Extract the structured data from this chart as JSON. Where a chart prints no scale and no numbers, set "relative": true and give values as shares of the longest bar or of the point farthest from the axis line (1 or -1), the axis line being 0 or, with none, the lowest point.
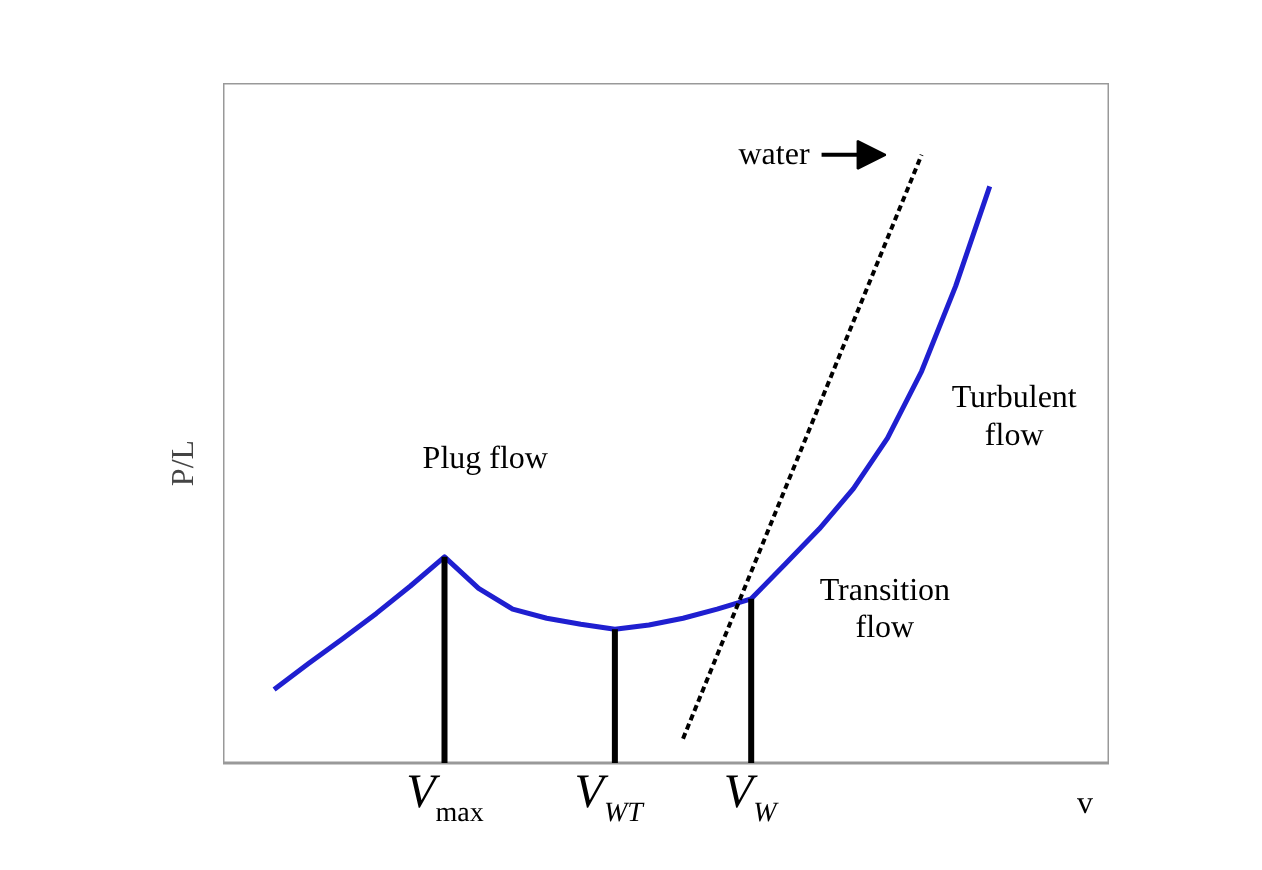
{
  "chart_data": {
    "type": "line",
    "relative": true,
    "ylabel": "P/L",
    "xlabel": "v",
    "categories": [
      null,
      null,
      null,
      null,
      null,
      null,
      "V$_{max}$",
      null,
      null,
      null,
      null,
      "V$_{WT}$",
      null,
      null,
      null,
      "V$_{W}$",
      null,
      null,
      null,
      null,
      null,
      null,
      null,
      null,
      null,
      null
    ],
    "grid": false,
    "tick_labels": "x",
    "series": [
      {
        "color": "#1f1fd0",
        "values": [
          null,
          0.121,
          0.163,
          0.204,
          0.246,
          0.291,
          0.339,
          0.287,
          0.253,
          0.238,
          0.228,
          0.22,
          0.227,
          0.238,
          0.253,
          0.27,
          0.327,
          0.385,
          0.451,
          0.534,
          0.644,
          0.784,
          0.948,
          null,
          null,
          null
        ]
      },
      {
        "type": "line",
        "name": "water",
        "color": "#000000",
        "line_style": "dotted",
        "values": [
          null,
          null,
          null,
          null,
          null,
          null,
          null,
          null,
          null,
          null,
          null,
          null,
          null,
          0.04,
          null,
          null,
          null,
          null,
          null,
          null,
          1.0,
          null,
          null,
          null,
          null,
          null
        ]
      },
      {
        "type": "bar",
        "color": "#000000",
        "values": [
          null,
          null,
          null,
          null,
          null,
          null,
          0.339,
          null,
          null,
          null,
          null,
          0.22,
          null,
          null,
          null,
          0.27,
          null,
          null,
          null,
          null,
          null,
          null,
          null,
          null,
          null,
          null
        ]
      }
    ],
    "annotations": [
      "Plug flow",
      "Turbulent\nflow",
      "Transition\nflow"
    ]
  }
}
